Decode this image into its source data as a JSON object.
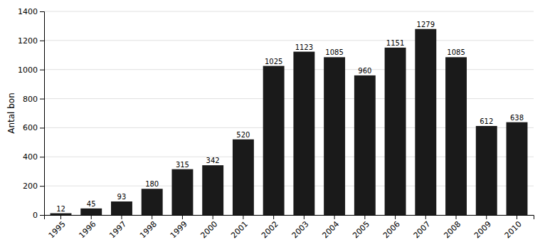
{
  "chart_data": {
    "type": "bar",
    "ylabel": "Antal bon",
    "categories": [
      "1995",
      "1996",
      "1997",
      "1998",
      "1999",
      "2000",
      "2001",
      "2002",
      "2003",
      "2004",
      "2005",
      "2006",
      "2007",
      "2008",
      "2009",
      "2010"
    ],
    "values": [
      12,
      45,
      93,
      180,
      315,
      342,
      520,
      1025,
      1123,
      1085,
      960,
      1151,
      1279,
      1085,
      612,
      638
    ],
    "color": "#1a1a1a",
    "ylim": [
      0,
      1400
    ],
    "yticks": [
      0,
      200,
      400,
      600,
      800,
      1000,
      1200,
      1400
    ],
    "grid": true,
    "data_labels": true
  }
}
